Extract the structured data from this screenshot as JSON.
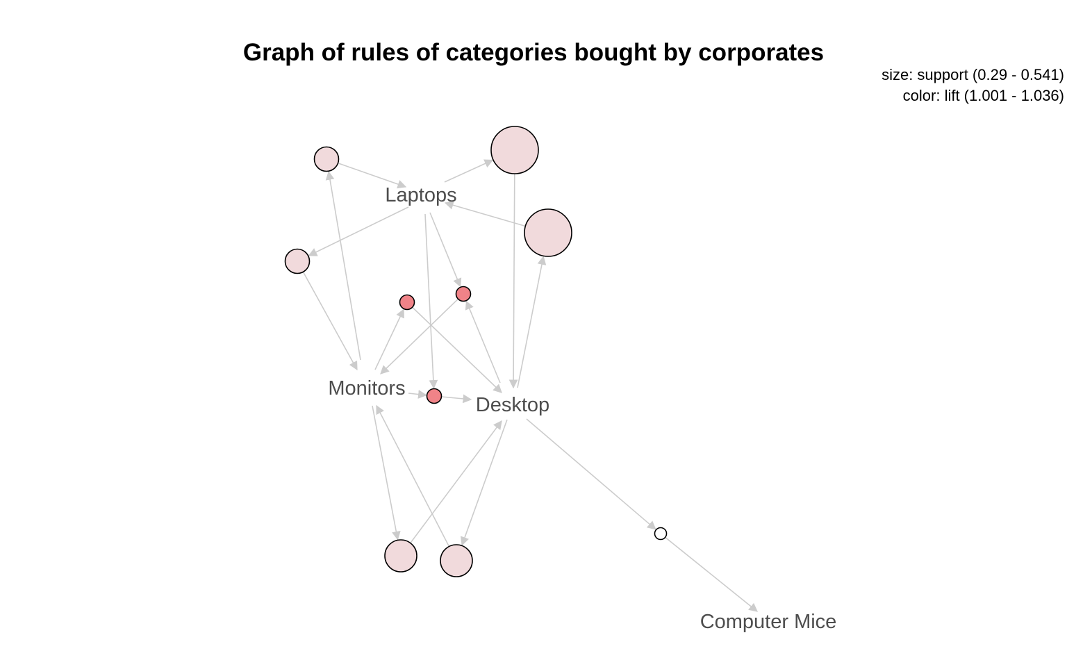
{
  "title": "Graph of rules of categories bought by corporates",
  "legend": {
    "size": "size: support (0.29 - 0.541)",
    "color": "color: lift (1.001 - 1.036)"
  },
  "colors": {
    "edge": "#cccccc",
    "rule_low_lift": "#f1dadc",
    "rule_high_lift": "#f08388",
    "rule_min_lift": "#ffffff",
    "item_label": "#4d4d4d"
  },
  "items": [
    {
      "id": "laptops",
      "label": "Laptops"
    },
    {
      "id": "monitors",
      "label": "Monitors"
    },
    {
      "id": "desktop",
      "label": "Desktop"
    },
    {
      "id": "computer_mice",
      "label": "Computer Mice"
    }
  ],
  "rules": [
    {
      "id": "r1",
      "lhs": [
        "monitors"
      ],
      "rhs": [
        "laptops"
      ],
      "lift_level": "low",
      "support_level": "small"
    },
    {
      "id": "r2",
      "lhs": [
        "laptops"
      ],
      "rhs": [
        "desktop"
      ],
      "lift_level": "low",
      "support_level": "largest"
    },
    {
      "id": "r3",
      "lhs": [
        "desktop"
      ],
      "rhs": [
        "laptops"
      ],
      "lift_level": "low",
      "support_level": "largest"
    },
    {
      "id": "r4",
      "lhs": [
        "laptops"
      ],
      "rhs": [
        "monitors"
      ],
      "lift_level": "low",
      "support_level": "small"
    },
    {
      "id": "r5",
      "lhs": [
        "monitors"
      ],
      "rhs": [
        "desktop"
      ],
      "lift_level": "high",
      "support_level": "smaller"
    },
    {
      "id": "r6",
      "lhs": [
        "laptops",
        "desktop"
      ],
      "rhs": [
        "monitors"
      ],
      "lift_level": "high",
      "support_level": "smaller"
    },
    {
      "id": "r7",
      "lhs": [
        "laptops",
        "monitors"
      ],
      "rhs": [
        "desktop"
      ],
      "lift_level": "high",
      "support_level": "smaller"
    },
    {
      "id": "r8",
      "lhs": [
        "monitors"
      ],
      "rhs": [
        "desktop"
      ],
      "lift_level": "low",
      "support_level": "medium"
    },
    {
      "id": "r9",
      "lhs": [
        "desktop"
      ],
      "rhs": [
        "monitors"
      ],
      "lift_level": "low",
      "support_level": "medium"
    },
    {
      "id": "r10",
      "lhs": [
        "desktop"
      ],
      "rhs": [
        "computer_mice"
      ],
      "lift_level": "min",
      "support_level": "smallest"
    }
  ]
}
